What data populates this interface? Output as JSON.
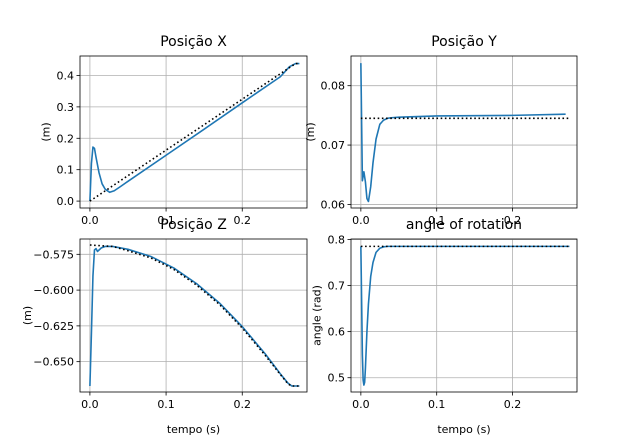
{
  "chart_data": [
    {
      "type": "line",
      "title": "Posição X",
      "xlabel": "",
      "ylabel": "(m)",
      "xlim": [
        -0.013,
        0.285
      ],
      "ylim": [
        -0.022,
        0.462
      ],
      "xticks": [
        0.0,
        0.1,
        0.2
      ],
      "xticklabels": [
        "0.0",
        "0.1",
        "0.2"
      ],
      "yticks": [
        0.0,
        0.1,
        0.2,
        0.3,
        0.4
      ],
      "yticklabels": [
        "0.0",
        "0.1",
        "0.2",
        "0.3",
        "0.4"
      ],
      "grid": true,
      "series": [
        {
          "style": "solid",
          "color": "#1f77b4",
          "x": [
            0.0,
            0.002,
            0.004,
            0.006,
            0.008,
            0.012,
            0.016,
            0.02,
            0.026,
            0.032,
            0.04,
            0.05,
            0.1,
            0.15,
            0.2,
            0.25,
            0.262,
            0.27,
            0.275
          ],
          "y": [
            0.0,
            0.12,
            0.172,
            0.168,
            0.14,
            0.09,
            0.055,
            0.038,
            0.028,
            0.033,
            0.046,
            0.063,
            0.146,
            0.229,
            0.313,
            0.396,
            0.428,
            0.438,
            0.438
          ]
        },
        {
          "style": "dotted",
          "color": "#000000",
          "x": [
            0.0,
            0.27,
            0.275
          ],
          "y": [
            0.0,
            0.438,
            0.438
          ]
        }
      ]
    },
    {
      "type": "line",
      "title": "Posição Y",
      "xlabel": "",
      "ylabel": "(m)",
      "xlim": [
        -0.013,
        0.285
      ],
      "ylim": [
        0.0594,
        0.085
      ],
      "xticks": [
        0.0,
        0.1,
        0.2
      ],
      "xticklabels": [
        "0.0",
        "0.1",
        "0.2"
      ],
      "yticks": [
        0.06,
        0.07,
        0.08
      ],
      "yticklabels": [
        "0.06",
        "0.07",
        "0.08"
      ],
      "grid": true,
      "series": [
        {
          "style": "solid",
          "color": "#1f77b4",
          "x": [
            0.0,
            0.002,
            0.004,
            0.006,
            0.008,
            0.01,
            0.013,
            0.016,
            0.02,
            0.025,
            0.03,
            0.035,
            0.04,
            0.05,
            0.1,
            0.2,
            0.27
          ],
          "y": [
            0.0838,
            0.064,
            0.0655,
            0.0638,
            0.061,
            0.0605,
            0.063,
            0.067,
            0.071,
            0.0735,
            0.0742,
            0.0745,
            0.0746,
            0.0747,
            0.0749,
            0.075,
            0.0752
          ]
        },
        {
          "style": "dotted",
          "color": "#000000",
          "x": [
            0.0,
            0.275
          ],
          "y": [
            0.0745,
            0.0745
          ]
        }
      ]
    },
    {
      "type": "line",
      "title": "Posição Z",
      "xlabel": "tempo (s)",
      "ylabel": "(m)",
      "xlim": [
        -0.013,
        0.285
      ],
      "ylim": [
        -0.6712,
        -0.5643
      ],
      "xticks": [
        0.0,
        0.1,
        0.2
      ],
      "xticklabels": [
        "0.0",
        "0.1",
        "0.2"
      ],
      "yticks": [
        -0.575,
        -0.6,
        -0.625,
        -0.65
      ],
      "yticklabels": [
        "−0.575",
        "−0.600",
        "−0.625",
        "−0.650"
      ],
      "grid": true,
      "series": [
        {
          "style": "solid",
          "color": "#1f77b4",
          "x": [
            0.0,
            0.002,
            0.004,
            0.006,
            0.008,
            0.01,
            0.015,
            0.02,
            0.03,
            0.05,
            0.08,
            0.11,
            0.14,
            0.17,
            0.2,
            0.23,
            0.25,
            0.26,
            0.265,
            0.27,
            0.275
          ],
          "y": [
            -0.667,
            -0.63,
            -0.59,
            -0.572,
            -0.571,
            -0.573,
            -0.5705,
            -0.5695,
            -0.5695,
            -0.5715,
            -0.5765,
            -0.5845,
            -0.5955,
            -0.609,
            -0.6255,
            -0.6445,
            -0.6585,
            -0.665,
            -0.667,
            -0.667,
            -0.667
          ]
        },
        {
          "style": "dotted",
          "color": "#000000",
          "x": [
            0.0,
            0.03,
            0.05,
            0.08,
            0.11,
            0.14,
            0.17,
            0.2,
            0.23,
            0.25,
            0.26,
            0.265,
            0.275
          ],
          "y": [
            -0.5685,
            -0.5695,
            -0.5725,
            -0.5775,
            -0.5855,
            -0.5965,
            -0.61,
            -0.6265,
            -0.6455,
            -0.659,
            -0.6655,
            -0.667,
            -0.667
          ]
        }
      ]
    },
    {
      "type": "line",
      "title": "angle of rotation",
      "xlabel": "tempo (s)",
      "ylabel": "angle (rad)",
      "xlim": [
        -0.013,
        0.285
      ],
      "ylim": [
        0.469,
        0.801
      ],
      "xticks": [
        0.0,
        0.1,
        0.2
      ],
      "xticklabels": [
        "0.0",
        "0.1",
        "0.2"
      ],
      "yticks": [
        0.5,
        0.6,
        0.7,
        0.8
      ],
      "yticklabels": [
        "0.5",
        "0.6",
        "0.7",
        "0.8"
      ],
      "grid": true,
      "series": [
        {
          "style": "solid",
          "color": "#1f77b4",
          "x": [
            0.0,
            0.002,
            0.003,
            0.004,
            0.005,
            0.006,
            0.008,
            0.01,
            0.013,
            0.016,
            0.02,
            0.025,
            0.03,
            0.035,
            0.04,
            0.05,
            0.1,
            0.2,
            0.275
          ],
          "y": [
            0.785,
            0.55,
            0.495,
            0.484,
            0.49,
            0.52,
            0.6,
            0.66,
            0.72,
            0.75,
            0.772,
            0.781,
            0.784,
            0.785,
            0.785,
            0.785,
            0.785,
            0.785,
            0.785
          ]
        },
        {
          "style": "dotted",
          "color": "#000000",
          "x": [
            0.0,
            0.275
          ],
          "y": [
            0.785,
            0.785
          ]
        }
      ]
    }
  ]
}
